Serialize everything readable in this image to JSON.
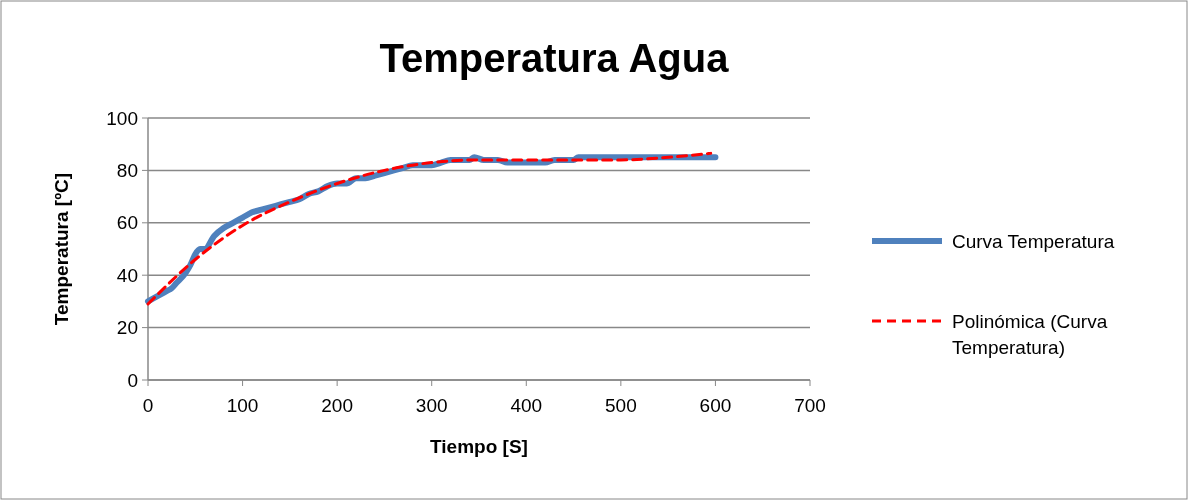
{
  "chart_data": {
    "type": "line",
    "title": "Temperatura Agua",
    "xlabel": "Tiempo [S]",
    "ylabel": "Temperatura [ºC]",
    "xlim": [
      0,
      700
    ],
    "xticks": [
      0,
      100,
      200,
      300,
      400,
      500,
      600,
      700
    ],
    "ylim": [
      0,
      100
    ],
    "yticks": [
      0,
      20,
      40,
      60,
      80,
      100
    ],
    "grid": "y",
    "legend": "right",
    "series": [
      {
        "name": "Curva Temperatura",
        "color": "#4f81bd",
        "line_style": "solid",
        "x": [
          0,
          10,
          20,
          25,
          30,
          40,
          45,
          50,
          55,
          60,
          70,
          80,
          90,
          100,
          110,
          120,
          130,
          140,
          150,
          160,
          170,
          180,
          190,
          200,
          210,
          220,
          230,
          240,
          250,
          260,
          270,
          280,
          290,
          300,
          310,
          320,
          330,
          340,
          345,
          355,
          370,
          380,
          400,
          420,
          430,
          450,
          455,
          500,
          550,
          600
        ],
        "values": [
          30,
          32,
          34,
          35,
          37,
          41,
          44,
          48,
          50,
          50,
          55,
          58,
          60,
          62,
          64,
          65,
          66,
          67,
          68,
          69,
          71,
          72,
          74,
          75,
          75,
          77,
          77,
          78,
          79,
          80,
          81,
          82,
          82,
          82,
          83,
          84,
          84,
          84,
          85,
          84,
          84,
          83,
          83,
          83,
          84,
          84,
          85,
          85,
          85,
          85
        ]
      },
      {
        "name": "Polinómica (Curva Temperatura)",
        "color": "#ff0000",
        "line_style": "dashed",
        "x": [
          0,
          50,
          100,
          150,
          200,
          250,
          300,
          350,
          400,
          450,
          500,
          550,
          595
        ],
        "values": [
          29,
          46,
          59,
          68,
          75,
          80,
          83,
          84,
          84,
          84,
          84,
          85,
          86.5
        ]
      }
    ]
  }
}
